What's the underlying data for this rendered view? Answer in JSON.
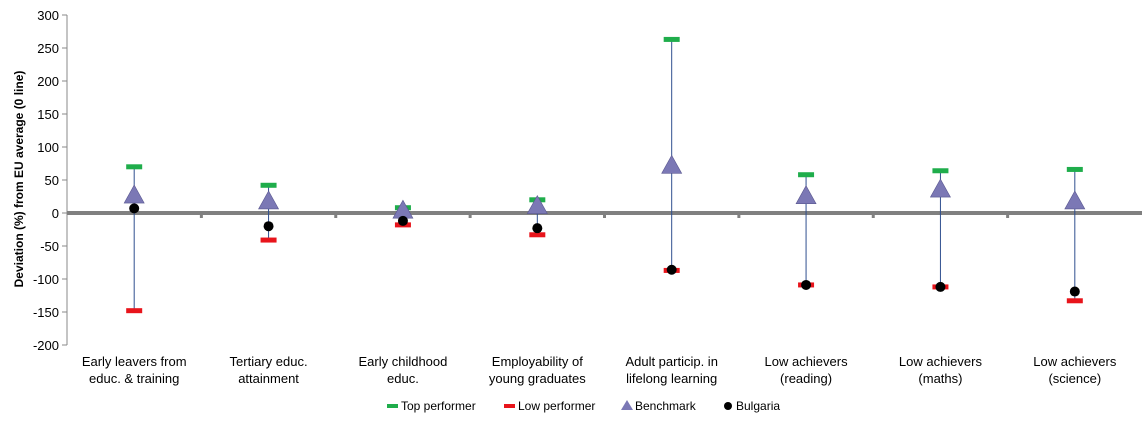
{
  "chart_data": {
    "type": "scatter",
    "ylabel": "Deviation (%) from EU average (0 line)",
    "ylim": [
      -200,
      300
    ],
    "yticks": [
      "300",
      "250",
      "200",
      "150",
      "100",
      "50",
      "0",
      "-50",
      "-100",
      "-150",
      "-200"
    ],
    "categories": [
      [
        "Early leavers from",
        "educ. & training"
      ],
      [
        "Tertiary educ.",
        "attainment"
      ],
      [
        "Early childhood",
        "educ."
      ],
      [
        "Employability of",
        "young graduates"
      ],
      [
        "Adult particip. in",
        "lifelong learning"
      ],
      [
        "Low achievers",
        "(reading)"
      ],
      [
        "Low achievers",
        "(maths)"
      ],
      [
        "Low achievers",
        "(science)"
      ]
    ],
    "series": [
      {
        "name": "Top performer",
        "marker": "dash",
        "color": "#1fad4b",
        "values": [
          70,
          42,
          8,
          20,
          263,
          58,
          64,
          66
        ]
      },
      {
        "name": "Low performer",
        "marker": "dash",
        "color": "#e8141b",
        "values": [
          -148,
          -41,
          -18,
          -33,
          -87,
          -109,
          -112,
          -133
        ]
      },
      {
        "name": "Benchmark",
        "marker": "triangle",
        "color": "#7b78b5",
        "values": [
          26,
          17,
          3,
          10,
          71,
          25,
          35,
          17
        ]
      },
      {
        "name": "Bulgaria",
        "marker": "circle",
        "color": "#000000",
        "values": [
          7,
          -20,
          -12,
          -23,
          -86,
          -109,
          -112,
          -119
        ]
      }
    ],
    "legend_position": "bottom",
    "grid": false
  }
}
